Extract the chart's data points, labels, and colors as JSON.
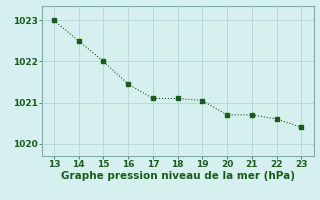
{
  "x": [
    13,
    14,
    15,
    16,
    17,
    18,
    19,
    20,
    21,
    22,
    23
  ],
  "y": [
    1023.0,
    1022.5,
    1022.0,
    1021.45,
    1021.1,
    1021.1,
    1021.05,
    1020.7,
    1020.7,
    1020.6,
    1020.4
  ],
  "xlabel": "Graphe pression niveau de la mer (hPa)",
  "line_color": "#1a5c1a",
  "marker": "s",
  "marker_size": 2.5,
  "bg_color": "#d6f0f0",
  "grid_color": "#b0d8d8",
  "xlim": [
    12.5,
    23.5
  ],
  "ylim": [
    1019.7,
    1023.35
  ],
  "xticks": [
    13,
    14,
    15,
    16,
    17,
    18,
    19,
    20,
    21,
    22,
    23
  ],
  "yticks": [
    1020,
    1021,
    1022,
    1023
  ],
  "tick_fontsize": 6.5,
  "xlabel_fontsize": 7.5
}
